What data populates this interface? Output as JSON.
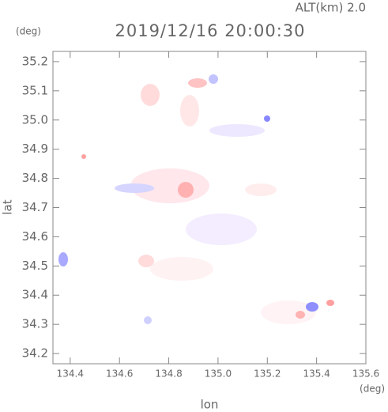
{
  "chart_data": {
    "type": "map",
    "title": "2019/12/16 20:00:30",
    "subtitle": "ALT(km) 2.0",
    "y_unit": "(deg)",
    "x_unit": "(deg)",
    "xlabel": "lon",
    "ylabel": "lat",
    "xlim": [
      134.33,
      135.6
    ],
    "ylim": [
      34.165,
      35.235
    ],
    "xticks": [
      134.4,
      134.6,
      134.8,
      {
        "value": 135.0,
        "label": "135.0"
      },
      135.2,
      135.4,
      135.6
    ],
    "yticks": [
      34.2,
      34.3,
      34.4,
      34.5,
      34.6,
      34.7,
      34.8,
      34.9,
      {
        "value": 35.0,
        "label": "35.0"
      },
      35.1,
      35.2
    ]
  }
}
